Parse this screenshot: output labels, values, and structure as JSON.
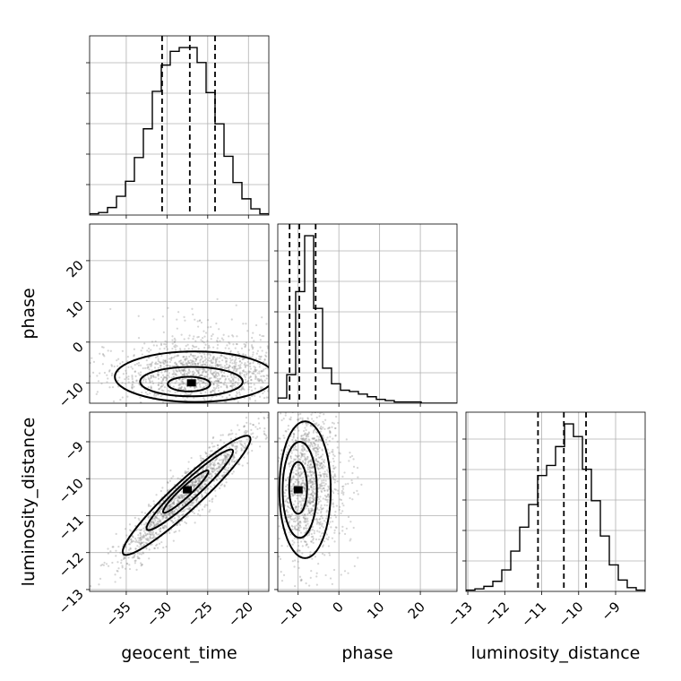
{
  "chart_data": {
    "type": "corner",
    "parameters": [
      "geocent_time",
      "phase",
      "luminosity_distance"
    ],
    "axis_labels": {
      "x": [
        "geocent_time",
        "phase",
        "luminosity_distance"
      ],
      "y": [
        "",
        "phase",
        "luminosity_distance"
      ]
    },
    "grid": true,
    "ranges": {
      "geocent_time": [
        -39.5,
        -17.5
      ],
      "phase": [
        -15,
        29
      ],
      "luminosity_distance": [
        -13.05,
        -8.2
      ]
    },
    "ticks": {
      "geocent_time": [
        -35,
        -30,
        -25,
        -20
      ],
      "phase": [
        -10,
        0,
        10,
        20
      ],
      "luminosity_distance": [
        -13,
        -12,
        -11,
        -10,
        -9
      ]
    },
    "tick_labels": {
      "geocent_time": [
        "−35",
        "−30",
        "−25",
        "−20"
      ],
      "phase": [
        "−10",
        "0",
        "10",
        "20"
      ],
      "luminosity_distance": [
        "−13",
        "−12",
        "−11",
        "−10",
        "−9"
      ]
    },
    "marginals": [
      {
        "parameter": "geocent_time",
        "bin_edges": [
          -39.5,
          -38.4,
          -37.3,
          -36.2,
          -35.1,
          -34.0,
          -32.9,
          -31.8,
          -30.7,
          -29.6,
          -28.5,
          -27.4,
          -26.3,
          -25.2,
          -24.1,
          -23.0,
          -21.9,
          -20.8,
          -19.7,
          -18.6,
          -17.5
        ],
        "counts": [
          1,
          2,
          6,
          15,
          27,
          46,
          69,
          99,
          120,
          131,
          134,
          134,
          122,
          98,
          73,
          47,
          26,
          13,
          5,
          1
        ],
        "quantiles": [
          -30.6,
          -27.2,
          -24.1
        ]
      },
      {
        "parameter": "phase",
        "bin_edges": [
          -15,
          -12.8,
          -10.6,
          -8.4,
          -6.2,
          -4.0,
          -1.8,
          0.4,
          2.6,
          4.8,
          7.0,
          9.2,
          11.4,
          13.6,
          15.8,
          18.0,
          20.2,
          22.4,
          24.6,
          26.8,
          29.0
        ],
        "counts": [
          4,
          22,
          86,
          129,
          73,
          27,
          15,
          10,
          9,
          7,
          5,
          3,
          2,
          1,
          1,
          1,
          0,
          0,
          0,
          0
        ],
        "quantiles": [
          -12.1,
          -9.7,
          -5.7
        ]
      },
      {
        "parameter": "luminosity_distance",
        "bin_edges": [
          -13.05,
          -12.807,
          -12.565,
          -12.322,
          -12.08,
          -11.837,
          -11.595,
          -11.352,
          -11.11,
          -10.867,
          -10.625,
          -10.382,
          -10.14,
          -9.897,
          -9.655,
          -9.412,
          -9.17,
          -8.927,
          -8.685,
          -8.442,
          -8.2
        ],
        "counts": [
          1,
          2,
          4,
          8,
          17,
          32,
          51,
          69,
          92,
          100,
          115,
          133,
          123,
          97,
          72,
          44,
          21,
          9,
          3,
          1
        ],
        "quantiles": [
          -11.1,
          -10.4,
          -9.8
        ]
      }
    ],
    "joint_2d": [
      {
        "x": "geocent_time",
        "y": "phase",
        "peak": [
          -27,
          -10
        ],
        "contour_levels": [
          {
            "level": "inner",
            "cx": -27.3,
            "cy": -10.3,
            "rx": 2.6,
            "ry": 1.8
          },
          {
            "level": "middle",
            "cx": -27.0,
            "cy": -9.7,
            "rx": 6.3,
            "ry": 3.6
          },
          {
            "level": "outer",
            "cx": -26.6,
            "cy": -8.5,
            "rx": 9.8,
            "ry": 6.2
          }
        ]
      },
      {
        "x": "geocent_time",
        "y": "luminosity_distance",
        "correlation": 0.97,
        "peak": [
          -27.5,
          -10.3
        ],
        "contour_levels": [
          {
            "level": "inner",
            "cx": -27.7,
            "cy": -10.35,
            "length": 5.5,
            "width": 0.25
          },
          {
            "level": "middle",
            "cx": -27.2,
            "cy": -10.3,
            "length": 10.5,
            "width": 0.45
          },
          {
            "level": "outer",
            "cx": -27.6,
            "cy": -10.45,
            "length": 15.5,
            "width": 0.7
          }
        ]
      },
      {
        "x": "phase",
        "y": "luminosity_distance",
        "peak": [
          -10,
          -10.3
        ],
        "contour_levels": [
          {
            "level": "inner",
            "cx": -10.0,
            "cy": -10.25,
            "rx": 2.2,
            "ry": 0.7
          },
          {
            "level": "middle",
            "cx": -9.6,
            "cy": -10.3,
            "rx": 4.2,
            "ry": 1.3
          },
          {
            "level": "outer",
            "cx": -8.3,
            "cy": -10.3,
            "rx": 6.3,
            "ry": 1.85
          }
        ]
      }
    ]
  }
}
